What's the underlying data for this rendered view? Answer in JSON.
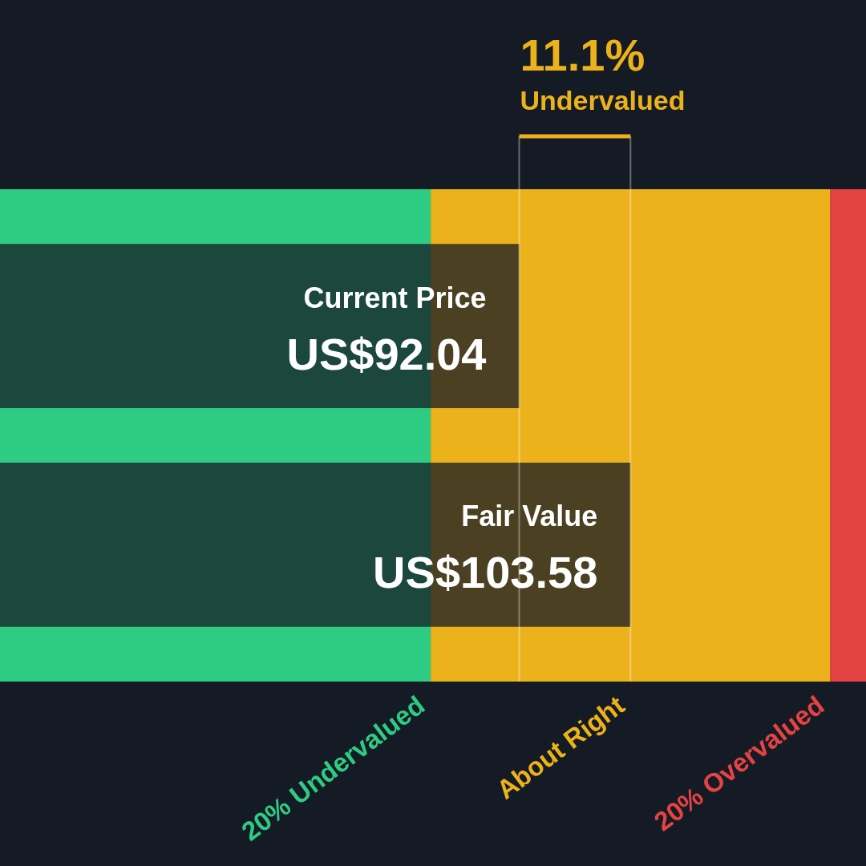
{
  "chart_data": {
    "type": "bar",
    "orientation": "horizontal",
    "categories": [
      "Current Price",
      "Fair Value"
    ],
    "values": [
      92.04,
      103.58
    ],
    "value_labels": [
      "US$92.04",
      "US$103.58"
    ],
    "color": "#151b24",
    "xlim": [
      38.2,
      128.0
    ],
    "tick_labels": "y",
    "bands": [
      {
        "axis": "x",
        "from": 38.2,
        "to": 82.86,
        "label": "20% Undervalued",
        "color": "#2ecc83"
      },
      {
        "axis": "x",
        "from": 82.86,
        "to": 124.3,
        "label": "About Right",
        "color": "#ecb21c"
      },
      {
        "axis": "x",
        "from": 124.3,
        "to": 128.0,
        "label": "20% Overvalued",
        "color": "#e44343"
      }
    ],
    "ref_lines": [
      {
        "axis": "x",
        "value": 92.04,
        "color": "#ffffff"
      },
      {
        "axis": "x",
        "value": 103.58,
        "color": "#ffffff"
      }
    ],
    "annotations": [
      "11.1%",
      "Undervalued"
    ]
  }
}
